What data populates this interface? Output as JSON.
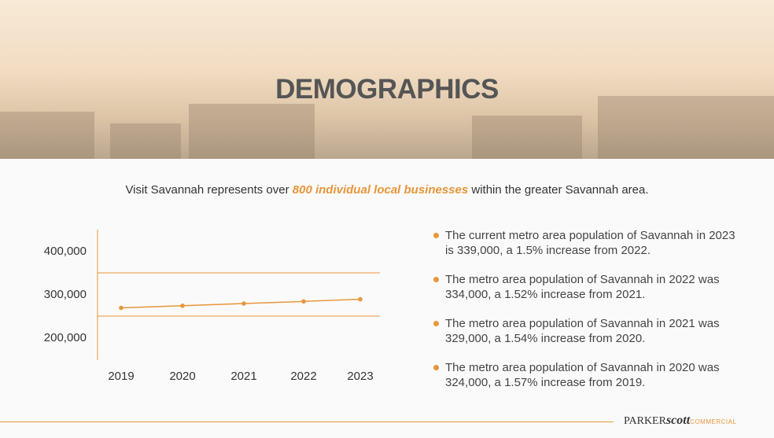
{
  "header": {
    "title": "DEMOGRAPHICS"
  },
  "intro": {
    "before": "Visit Savannah represents over ",
    "highlight": "800 individual local businesses",
    "after": " within the greater Savannah area."
  },
  "chart_data": {
    "type": "line",
    "categories": [
      "2019",
      "2020",
      "2021",
      "2022",
      "2023"
    ],
    "values": [
      319000,
      324000,
      329000,
      334000,
      339000
    ],
    "color": "#e8963a",
    "ylim": [
      200000,
      500000
    ],
    "yticks": [
      {
        "value": 200000,
        "label": "200,000"
      },
      {
        "value": 300000,
        "label": "300,000"
      },
      {
        "value": 400000,
        "label": "400,000"
      }
    ],
    "grid": true
  },
  "bullets": [
    "The current metro area population of Savannah in 2023 is 339,000, a 1.5% increase from 2022.",
    "The metro area population of Savannah in 2022 was 334,000, a 1.52% increase from 2021.",
    "The metro area population of Savannah in 2021 was 329,000, a 1.54% increase from 2020.",
    "The metro area population of Savannah in 2020 was 324,000, a 1.57% increase from 2019."
  ],
  "footer": {
    "brand": "PARKER",
    "brand_script": "scott",
    "brand_sub": "COMMERCIAL"
  }
}
